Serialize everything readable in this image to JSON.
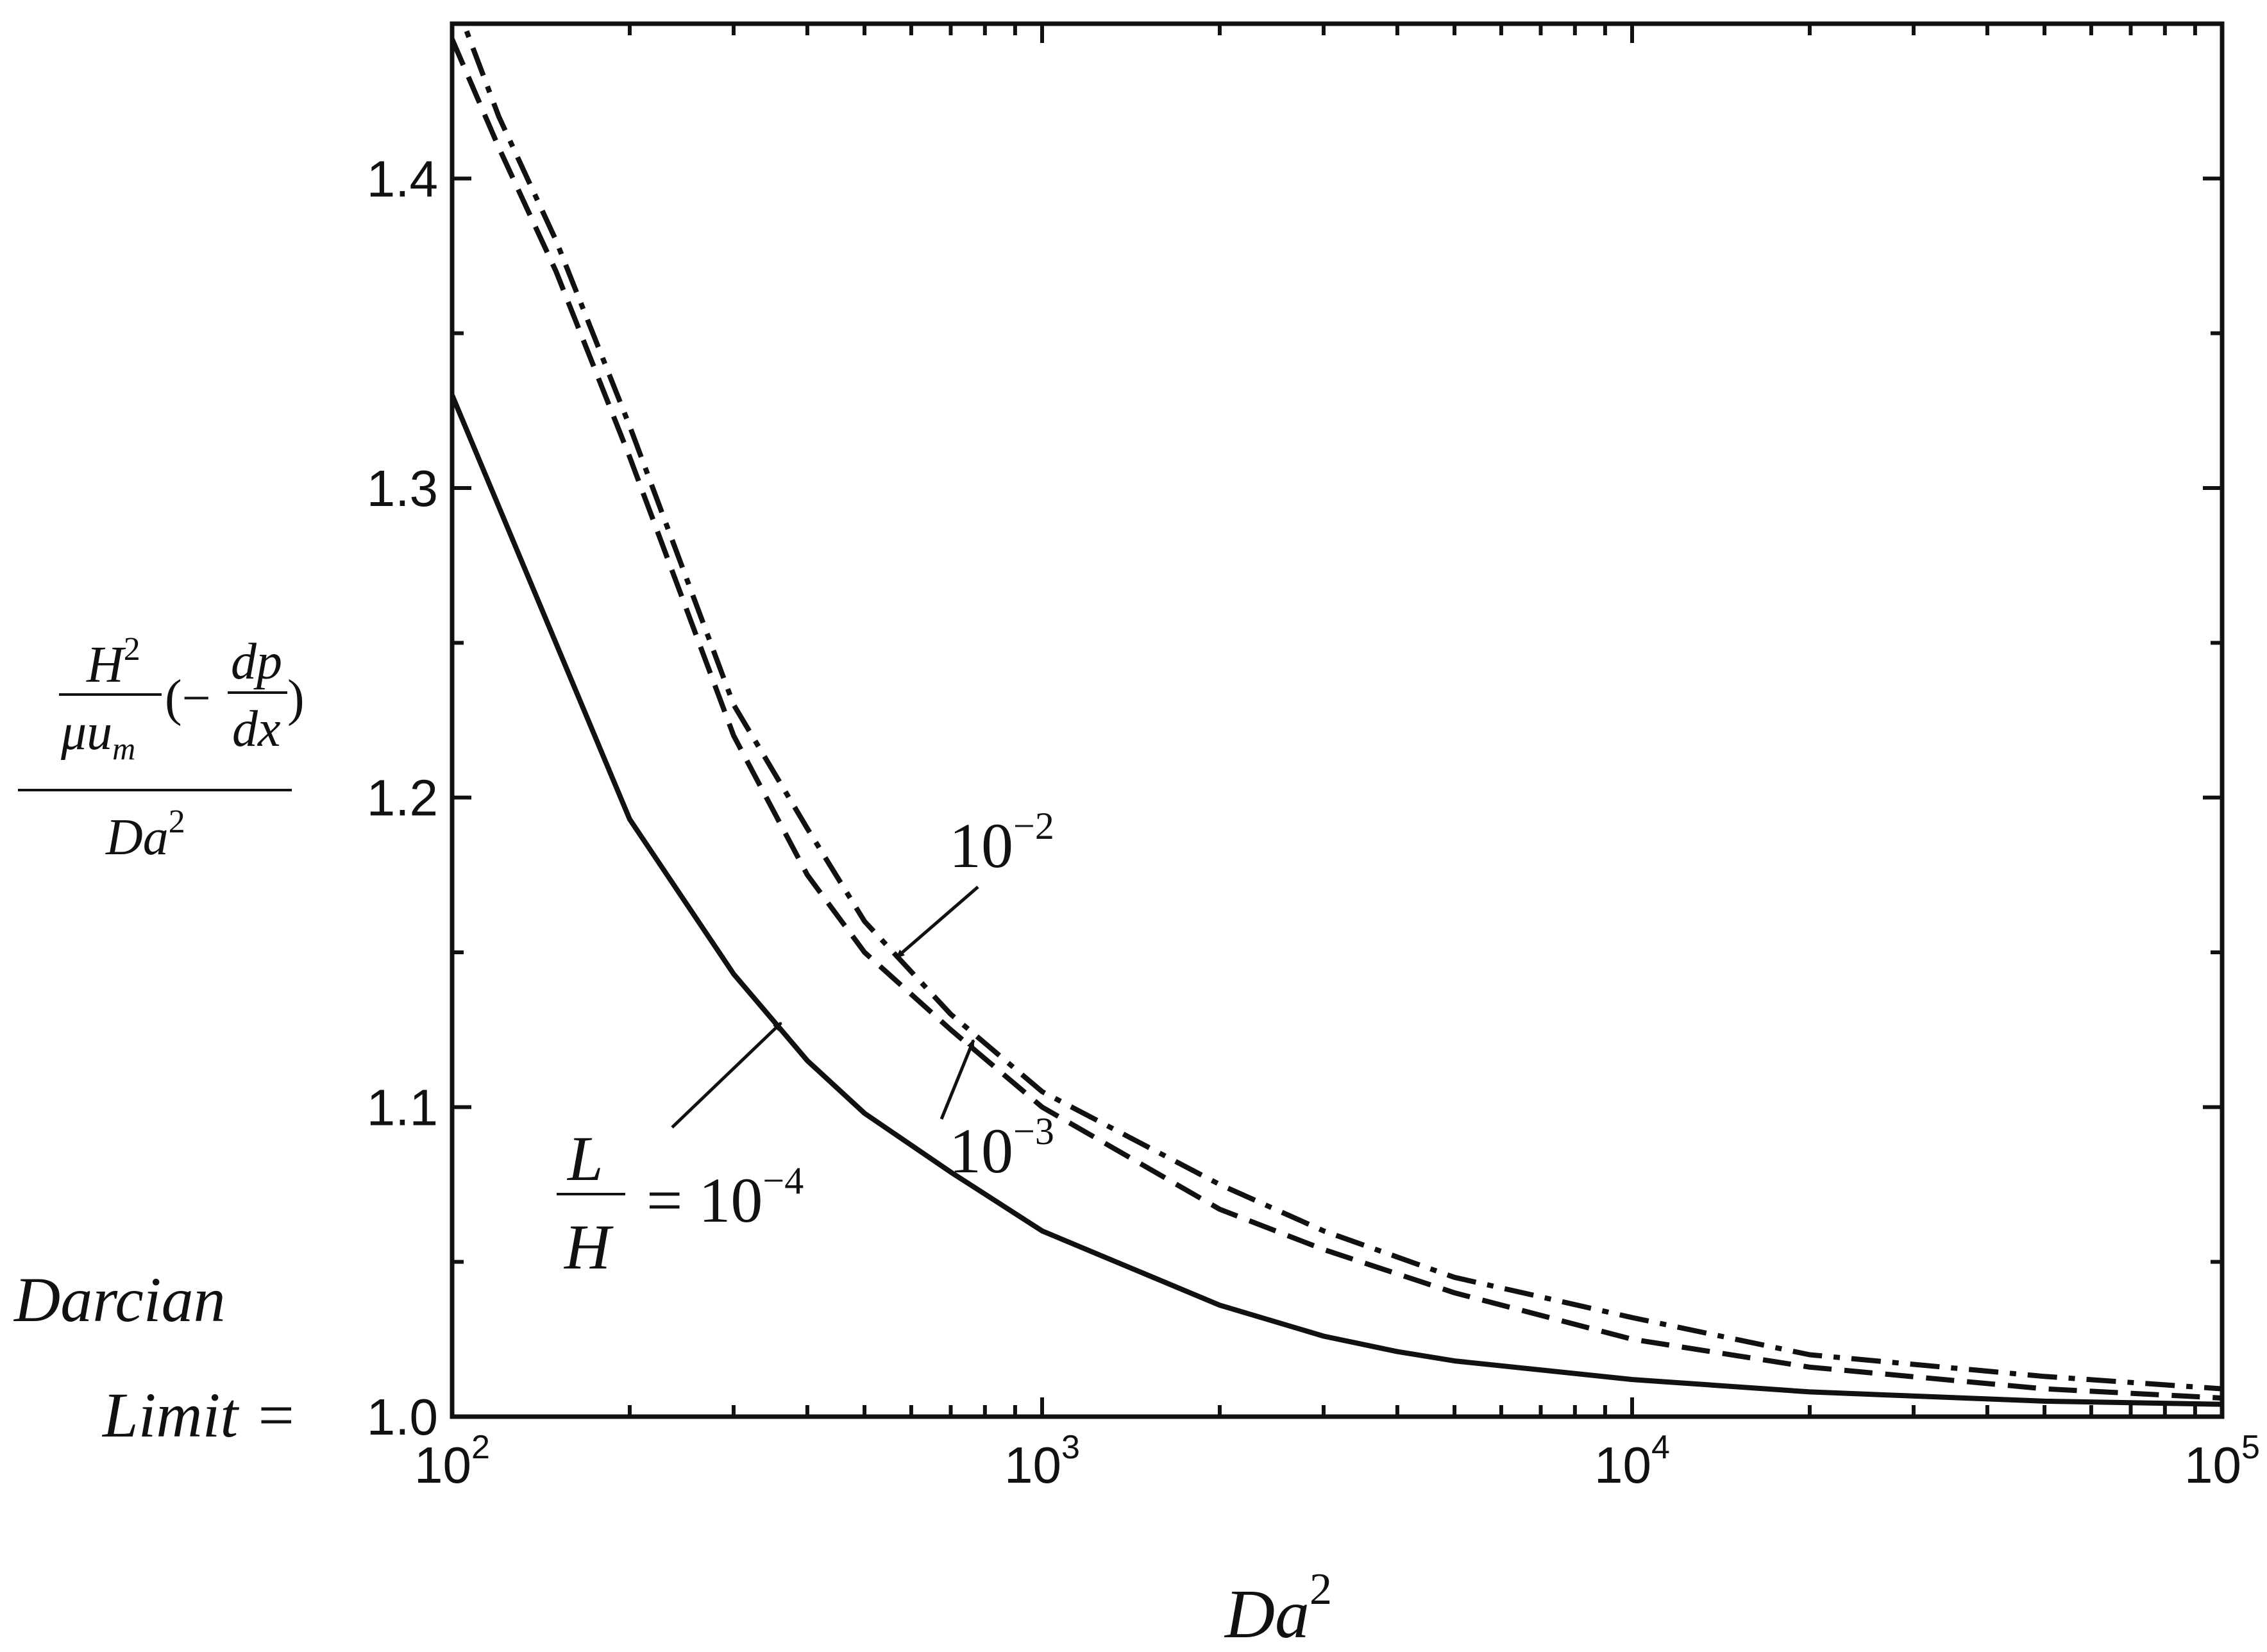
{
  "chart_data": {
    "type": "line",
    "x_scale": "log",
    "xlim": [
      100,
      100000
    ],
    "ylim": [
      1.0,
      1.45
    ],
    "x_ticks": [
      {
        "value": 100,
        "base": "10",
        "exp": "2"
      },
      {
        "value": 1000,
        "base": "10",
        "exp": "3"
      },
      {
        "value": 10000,
        "base": "10",
        "exp": "4"
      },
      {
        "value": 100000,
        "base": "10",
        "exp": "5"
      }
    ],
    "y_ticks": [
      {
        "value": 1.0,
        "label": "1.0"
      },
      {
        "value": 1.1,
        "label": "1.1"
      },
      {
        "value": 1.2,
        "label": "1.2"
      },
      {
        "value": 1.3,
        "label": "1.3"
      },
      {
        "value": 1.4,
        "label": "1.4"
      }
    ],
    "xlabel": {
      "base": "Da",
      "exp": "2"
    },
    "ylabel": {
      "num_left_base": "H",
      "num_left_exp": "2",
      "den_left": "μu",
      "den_left_sub": "m",
      "open_paren": "(−",
      "inner_num": "dp",
      "inner_den": "dx",
      "close_paren": ")",
      "denominator_base": "Da",
      "denominator_exp": "2"
    },
    "darcian": {
      "line1": "Darcian",
      "line2": "Limit ="
    },
    "series": [
      {
        "style": "solid",
        "x": [
          100,
          200,
          300,
          400,
          500,
          700,
          1000,
          2000,
          3000,
          4000,
          5000,
          10000,
          20000,
          50000,
          100000
        ],
        "y": [
          1.33,
          1.193,
          1.143,
          1.115,
          1.098,
          1.079,
          1.06,
          1.036,
          1.026,
          1.021,
          1.018,
          1.012,
          1.008,
          1.005,
          1.004
        ]
      },
      {
        "style": "dashed",
        "x": [
          100,
          120,
          150,
          200,
          300,
          400,
          500,
          700,
          1000,
          2000,
          3000,
          5000,
          10000,
          20000,
          50000,
          100000
        ],
        "y": [
          1.445,
          1.41,
          1.37,
          1.31,
          1.22,
          1.175,
          1.15,
          1.125,
          1.1,
          1.067,
          1.054,
          1.04,
          1.025,
          1.016,
          1.009,
          1.006
        ]
      },
      {
        "style": "dashdot",
        "x": [
          100,
          120,
          150,
          200,
          300,
          400,
          500,
          700,
          1000,
          2000,
          3000,
          5000,
          10000,
          20000,
          50000,
          100000
        ],
        "y": [
          1.46,
          1.42,
          1.38,
          1.32,
          1.23,
          1.19,
          1.16,
          1.13,
          1.105,
          1.075,
          1.06,
          1.045,
          1.032,
          1.02,
          1.013,
          1.009
        ]
      }
    ],
    "annotations": {
      "a1": {
        "base": "10",
        "exp": "−2"
      },
      "a2": {
        "base": "10",
        "exp": "−3"
      },
      "a3": {
        "frac_num": "L",
        "frac_den": "H",
        "eq": "= 10",
        "exp": "−4"
      }
    }
  }
}
